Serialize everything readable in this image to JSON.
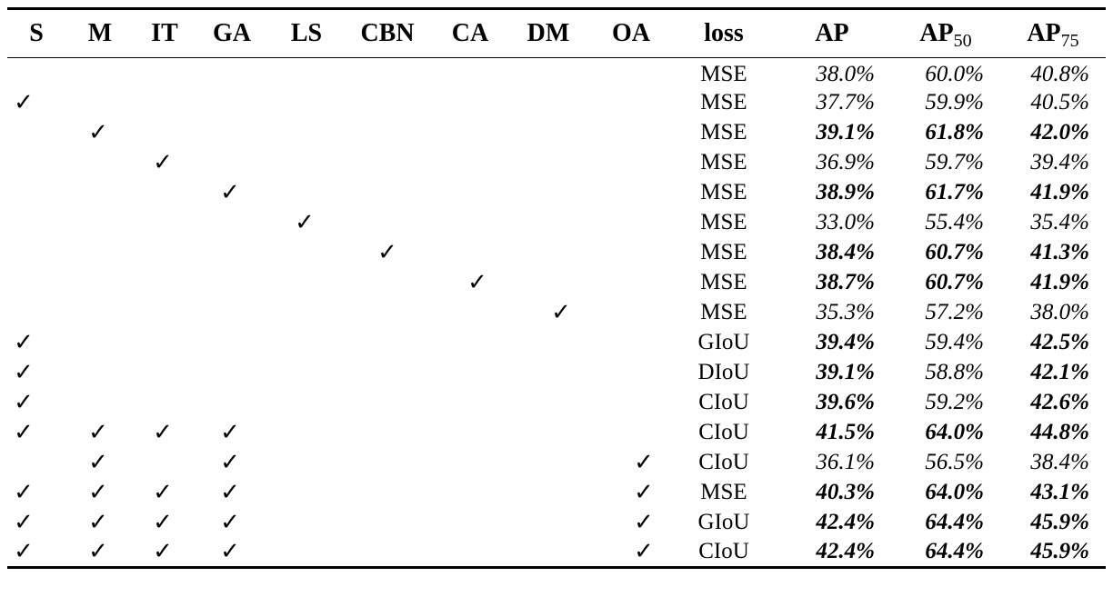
{
  "columns": {
    "S": "S",
    "M": "M",
    "IT": "IT",
    "GA": "GA",
    "LS": "LS",
    "CBN": "CBN",
    "CA": "CA",
    "DM": "DM",
    "OA": "OA",
    "loss": "loss",
    "AP": "AP",
    "AP50_base": "AP",
    "AP50_sub": "50",
    "AP75_base": "AP",
    "AP75_sub": "75"
  },
  "check_glyph": "✓",
  "rows": [
    {
      "flags": [
        0,
        0,
        0,
        0,
        0,
        0,
        0,
        0,
        0
      ],
      "loss": "MSE",
      "ap": "38.0%",
      "ap50": "60.0%",
      "ap75": "40.8%",
      "bold": [
        0,
        0,
        0
      ]
    },
    {
      "flags": [
        1,
        0,
        0,
        0,
        0,
        0,
        0,
        0,
        0
      ],
      "loss": "MSE",
      "ap": "37.7%",
      "ap50": "59.9%",
      "ap75": "40.5%",
      "bold": [
        0,
        0,
        0
      ]
    },
    {
      "flags": [
        0,
        1,
        0,
        0,
        0,
        0,
        0,
        0,
        0
      ],
      "loss": "MSE",
      "ap": "39.1%",
      "ap50": "61.8%",
      "ap75": "42.0%",
      "bold": [
        1,
        1,
        1
      ]
    },
    {
      "flags": [
        0,
        0,
        1,
        0,
        0,
        0,
        0,
        0,
        0
      ],
      "loss": "MSE",
      "ap": "36.9%",
      "ap50": "59.7%",
      "ap75": "39.4%",
      "bold": [
        0,
        0,
        0
      ]
    },
    {
      "flags": [
        0,
        0,
        0,
        1,
        0,
        0,
        0,
        0,
        0
      ],
      "loss": "MSE",
      "ap": "38.9%",
      "ap50": "61.7%",
      "ap75": "41.9%",
      "bold": [
        1,
        1,
        1
      ]
    },
    {
      "flags": [
        0,
        0,
        0,
        0,
        1,
        0,
        0,
        0,
        0
      ],
      "loss": "MSE",
      "ap": "33.0%",
      "ap50": "55.4%",
      "ap75": "35.4%",
      "bold": [
        0,
        0,
        0
      ]
    },
    {
      "flags": [
        0,
        0,
        0,
        0,
        0,
        1,
        0,
        0,
        0
      ],
      "loss": "MSE",
      "ap": "38.4%",
      "ap50": "60.7%",
      "ap75": "41.3%",
      "bold": [
        1,
        1,
        1
      ]
    },
    {
      "flags": [
        0,
        0,
        0,
        0,
        0,
        0,
        1,
        0,
        0
      ],
      "loss": "MSE",
      "ap": "38.7%",
      "ap50": "60.7%",
      "ap75": "41.9%",
      "bold": [
        1,
        1,
        1
      ]
    },
    {
      "flags": [
        0,
        0,
        0,
        0,
        0,
        0,
        0,
        1,
        0
      ],
      "loss": "MSE",
      "ap": "35.3%",
      "ap50": "57.2%",
      "ap75": "38.0%",
      "bold": [
        0,
        0,
        0
      ]
    },
    {
      "flags": [
        1,
        0,
        0,
        0,
        0,
        0,
        0,
        0,
        0
      ],
      "loss": "GIoU",
      "ap": "39.4%",
      "ap50": "59.4%",
      "ap75": "42.5%",
      "bold": [
        1,
        0,
        1
      ]
    },
    {
      "flags": [
        1,
        0,
        0,
        0,
        0,
        0,
        0,
        0,
        0
      ],
      "loss": "DIoU",
      "ap": "39.1%",
      "ap50": "58.8%",
      "ap75": "42.1%",
      "bold": [
        1,
        0,
        1
      ]
    },
    {
      "flags": [
        1,
        0,
        0,
        0,
        0,
        0,
        0,
        0,
        0
      ],
      "loss": "CIoU",
      "ap": "39.6%",
      "ap50": "59.2%",
      "ap75": "42.6%",
      "bold": [
        1,
        0,
        1
      ]
    },
    {
      "flags": [
        1,
        1,
        1,
        1,
        0,
        0,
        0,
        0,
        0
      ],
      "loss": "CIoU",
      "ap": "41.5%",
      "ap50": "64.0%",
      "ap75": "44.8%",
      "bold": [
        1,
        1,
        1
      ]
    },
    {
      "flags": [
        0,
        1,
        0,
        1,
        0,
        0,
        0,
        0,
        1
      ],
      "loss": "CIoU",
      "ap": "36.1%",
      "ap50": "56.5%",
      "ap75": "38.4%",
      "bold": [
        0,
        0,
        0
      ]
    },
    {
      "flags": [
        1,
        1,
        1,
        1,
        0,
        0,
        0,
        0,
        1
      ],
      "loss": "MSE",
      "ap": "40.3%",
      "ap50": "64.0%",
      "ap75": "43.1%",
      "bold": [
        1,
        1,
        1
      ]
    },
    {
      "flags": [
        1,
        1,
        1,
        1,
        0,
        0,
        0,
        0,
        1
      ],
      "loss": "GIoU",
      "ap": "42.4%",
      "ap50": "64.4%",
      "ap75": "45.9%",
      "bold": [
        1,
        1,
        1
      ]
    },
    {
      "flags": [
        1,
        1,
        1,
        1,
        0,
        0,
        0,
        0,
        1
      ],
      "loss": "CIoU",
      "ap": "42.4%",
      "ap50": "64.4%",
      "ap75": "45.9%",
      "bold": [
        1,
        1,
        1
      ]
    }
  ]
}
